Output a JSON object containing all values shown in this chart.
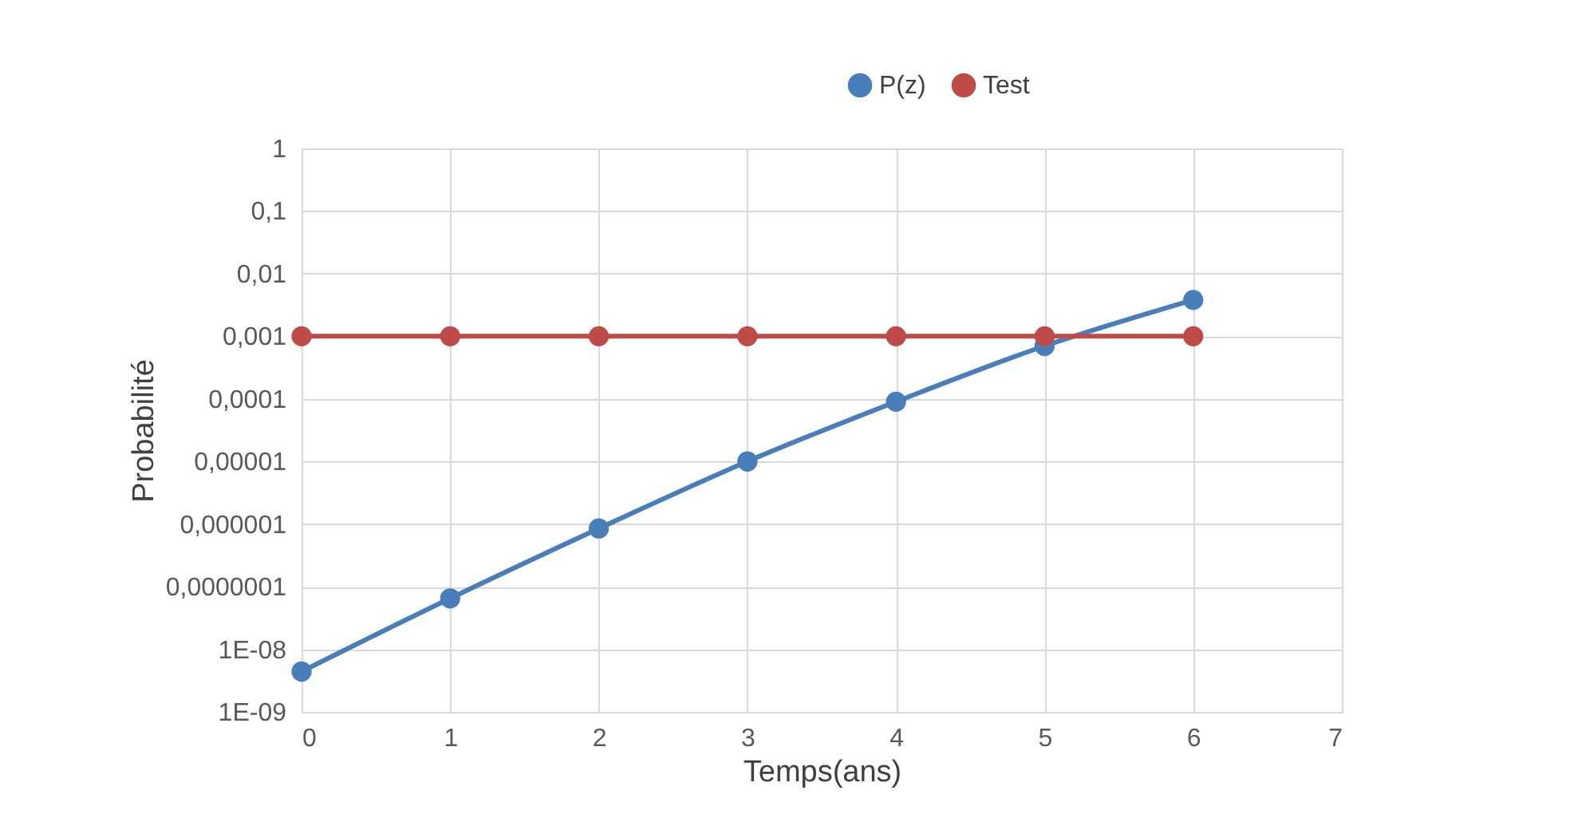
{
  "chart_data": {
    "type": "line",
    "xlabel": "Temps(ans)",
    "ylabel": "Probabilité",
    "x": [
      0,
      1,
      2,
      3,
      4,
      5,
      6
    ],
    "series": [
      {
        "name": "P(z)",
        "color": "#4a7ebb",
        "values": [
          4.4e-09,
          6.5e-08,
          8.5e-07,
          1e-05,
          9e-05,
          0.0007,
          0.0038
        ]
      },
      {
        "name": "Test",
        "color": "#be4b48",
        "values": [
          0.001,
          0.001,
          0.001,
          0.001,
          0.001,
          0.001,
          0.001
        ]
      }
    ],
    "log": "y",
    "xlim": [
      0,
      7
    ],
    "xticks": [
      0,
      1,
      2,
      3,
      4,
      5,
      6,
      7
    ],
    "ylim": [
      1e-09,
      1
    ],
    "yticks": [
      {
        "value": 1e-09,
        "label": "1E-09"
      },
      {
        "value": 1e-08,
        "label": "1E-08"
      },
      {
        "value": 1e-07,
        "label": "0,0000001"
      },
      {
        "value": 1e-06,
        "label": "0,000001"
      },
      {
        "value": 1e-05,
        "label": "0,00001"
      },
      {
        "value": 0.0001,
        "label": "0,0001"
      },
      {
        "value": 0.001,
        "label": "0,001"
      },
      {
        "value": 0.01,
        "label": "0,01"
      },
      {
        "value": 0.1,
        "label": "0,1"
      },
      {
        "value": 1,
        "label": "1"
      }
    ],
    "grid": true,
    "legend": "top right",
    "marker": "circle",
    "line_style": "solid"
  }
}
